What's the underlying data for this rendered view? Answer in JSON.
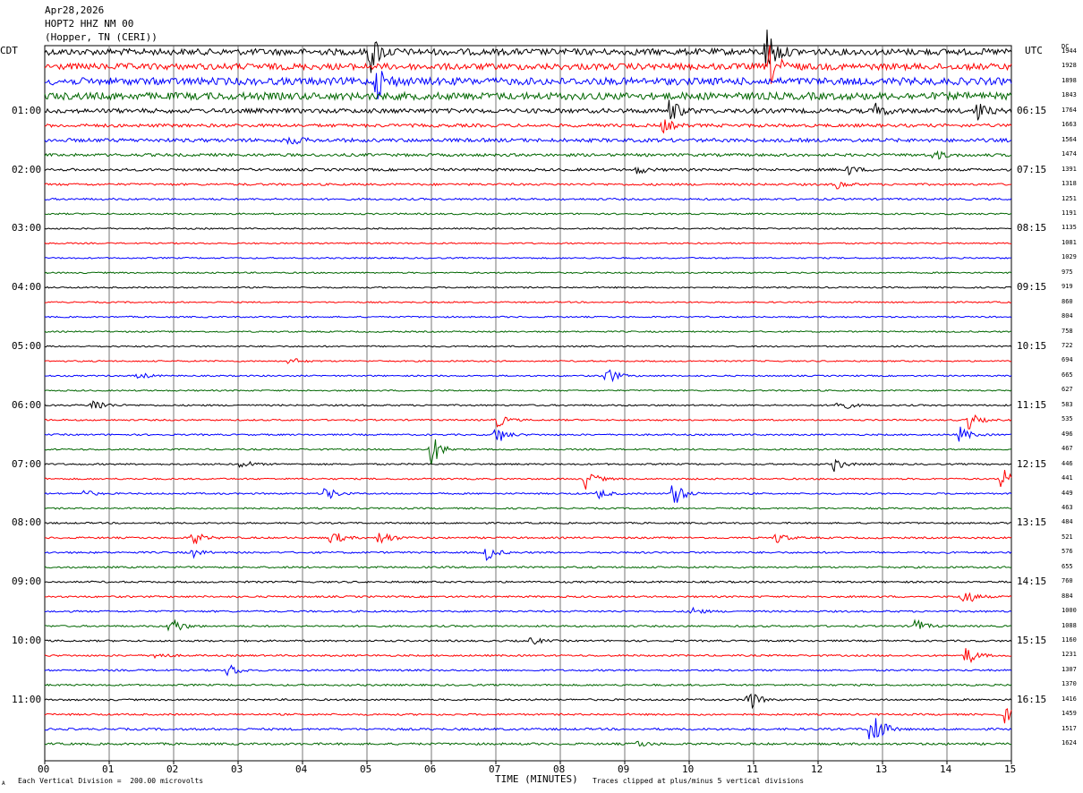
{
  "header": {
    "date": "Apr28,2026",
    "station": "HOPT2 HHZ NM 00",
    "location": "(Hopper, TN (CERI))"
  },
  "corner_left": "CDT",
  "corner_right": "UTC",
  "dc_header": "DC",
  "footer": {
    "scale": "Each Vertical Division =  200.00 microvolts",
    "clip_note": "Traces clipped at plus/minus 5 vertical divisions",
    "corner_mark": "A"
  },
  "chart_data": {
    "type": "line",
    "title": "",
    "xlabel": "TIME (MINUTES)",
    "ylabel": "",
    "xlim": [
      0,
      15
    ],
    "x_ticks": [
      "00",
      "01",
      "02",
      "03",
      "04",
      "05",
      "06",
      "07",
      "08",
      "09",
      "10",
      "11",
      "12",
      "13",
      "14",
      "15"
    ],
    "trace_count": 48,
    "trace_colors": [
      "#000000",
      "#ff0000",
      "#0000ff",
      "#006600"
    ],
    "left_labels": [
      {
        "trace": 4,
        "text": "01:00"
      },
      {
        "trace": 8,
        "text": "02:00"
      },
      {
        "trace": 12,
        "text": "03:00"
      },
      {
        "trace": 16,
        "text": "04:00"
      },
      {
        "trace": 20,
        "text": "05:00"
      },
      {
        "trace": 24,
        "text": "06:00"
      },
      {
        "trace": 28,
        "text": "07:00"
      },
      {
        "trace": 32,
        "text": "08:00"
      },
      {
        "trace": 36,
        "text": "09:00"
      },
      {
        "trace": 40,
        "text": "10:00"
      },
      {
        "trace": 44,
        "text": "11:00"
      }
    ],
    "right_labels": [
      {
        "trace": 4,
        "text": "06:15"
      },
      {
        "trace": 8,
        "text": "07:15"
      },
      {
        "trace": 12,
        "text": "08:15"
      },
      {
        "trace": 16,
        "text": "09:15"
      },
      {
        "trace": 20,
        "text": "10:15"
      },
      {
        "trace": 24,
        "text": "11:15"
      },
      {
        "trace": 28,
        "text": "12:15"
      },
      {
        "trace": 32,
        "text": "13:15"
      },
      {
        "trace": 36,
        "text": "14:15"
      },
      {
        "trace": 40,
        "text": "15:15"
      },
      {
        "trace": 44,
        "text": "16:15"
      }
    ],
    "dc_offsets": [
      "1944",
      "1928",
      "1898",
      "1843",
      "1764",
      "1663",
      "1564",
      "1474",
      "1391",
      "1318",
      "1251",
      "1191",
      "1135",
      "1081",
      "1029",
      "975",
      "919",
      "860",
      "804",
      "758",
      "722",
      "694",
      "665",
      "627",
      "583",
      "535",
      "496",
      "467",
      "446",
      "441",
      "449",
      "463",
      "484",
      "521",
      "576",
      "655",
      "760",
      "884",
      "1000",
      "1088",
      "1160",
      "1231",
      "1307",
      "1370",
      "1416",
      "1459",
      "1517",
      "1624"
    ],
    "trace_noise": [
      3.5,
      3.5,
      4,
      4,
      2.5,
      1.8,
      2,
      1.6,
      1.4,
      1.2,
      1.1,
      0.9,
      0.8,
      0.8,
      0.8,
      0.8,
      0.8,
      0.8,
      0.8,
      0.8,
      0.8,
      0.8,
      0.8,
      0.8,
      0.9,
      0.9,
      0.9,
      0.9,
      0.9,
      0.9,
      0.9,
      0.9,
      0.9,
      1,
      1,
      1,
      1,
      1,
      1,
      1,
      1,
      1,
      1,
      1,
      1,
      1,
      1.2,
      1.2
    ],
    "events": [
      {
        "trace": 0,
        "t": 5.05,
        "amp": 25
      },
      {
        "trace": 0,
        "t": 11.2,
        "amp": 30
      },
      {
        "trace": 1,
        "t": 11.25,
        "amp": 22
      },
      {
        "trace": 2,
        "t": 5.15,
        "amp": 20
      },
      {
        "trace": 4,
        "t": 9.7,
        "amp": 14
      },
      {
        "trace": 4,
        "t": 14.45,
        "amp": 12
      },
      {
        "trace": 4,
        "t": 12.9,
        "amp": 8
      },
      {
        "trace": 5,
        "t": 9.6,
        "amp": 8
      },
      {
        "trace": 6,
        "t": 3.8,
        "amp": 6
      },
      {
        "trace": 7,
        "t": 13.8,
        "amp": 6
      },
      {
        "trace": 8,
        "t": 12.45,
        "amp": 6
      },
      {
        "trace": 8,
        "t": 9.2,
        "amp": 5
      },
      {
        "trace": 9,
        "t": 12.3,
        "amp": 5
      },
      {
        "trace": 21,
        "t": 3.8,
        "amp": 5
      },
      {
        "trace": 22,
        "t": 8.7,
        "amp": 14
      },
      {
        "trace": 22,
        "t": 1.45,
        "amp": 5
      },
      {
        "trace": 24,
        "t": 0.75,
        "amp": 10
      },
      {
        "trace": 24,
        "t": 12.3,
        "amp": 10
      },
      {
        "trace": 25,
        "t": 14.3,
        "amp": 14
      },
      {
        "trace": 25,
        "t": 7.0,
        "amp": 10
      },
      {
        "trace": 26,
        "t": 7.0,
        "amp": 12
      },
      {
        "trace": 26,
        "t": 14.2,
        "amp": 10
      },
      {
        "trace": 27,
        "t": 6.0,
        "amp": 20
      },
      {
        "trace": 28,
        "t": 3.05,
        "amp": 6
      },
      {
        "trace": 28,
        "t": 12.25,
        "amp": 8
      },
      {
        "trace": 29,
        "t": 8.4,
        "amp": 13
      },
      {
        "trace": 29,
        "t": 14.85,
        "amp": 14
      },
      {
        "trace": 30,
        "t": 9.75,
        "amp": 18
      },
      {
        "trace": 30,
        "t": 4.35,
        "amp": 10
      },
      {
        "trace": 30,
        "t": 8.6,
        "amp": 6
      },
      {
        "trace": 30,
        "t": 0.6,
        "amp": 5
      },
      {
        "trace": 33,
        "t": 5.2,
        "amp": 12
      },
      {
        "trace": 33,
        "t": 4.45,
        "amp": 10
      },
      {
        "trace": 33,
        "t": 2.3,
        "amp": 9
      },
      {
        "trace": 33,
        "t": 11.35,
        "amp": 7
      },
      {
        "trace": 34,
        "t": 6.85,
        "amp": 10
      },
      {
        "trace": 34,
        "t": 2.3,
        "amp": 5
      },
      {
        "trace": 37,
        "t": 14.25,
        "amp": 14
      },
      {
        "trace": 38,
        "t": 10.05,
        "amp": 5
      },
      {
        "trace": 39,
        "t": 1.95,
        "amp": 14
      },
      {
        "trace": 39,
        "t": 13.5,
        "amp": 10
      },
      {
        "trace": 40,
        "t": 7.55,
        "amp": 5
      },
      {
        "trace": 41,
        "t": 14.3,
        "amp": 12
      },
      {
        "trace": 41,
        "t": 1.7,
        "amp": 5
      },
      {
        "trace": 42,
        "t": 2.85,
        "amp": 9
      },
      {
        "trace": 44,
        "t": 10.9,
        "amp": 16
      },
      {
        "trace": 45,
        "t": 14.9,
        "amp": 10
      },
      {
        "trace": 46,
        "t": 12.8,
        "amp": 18
      },
      {
        "trace": 46,
        "t": 12.9,
        "amp": 10
      },
      {
        "trace": 47,
        "t": 9.2,
        "amp": 4
      }
    ]
  }
}
